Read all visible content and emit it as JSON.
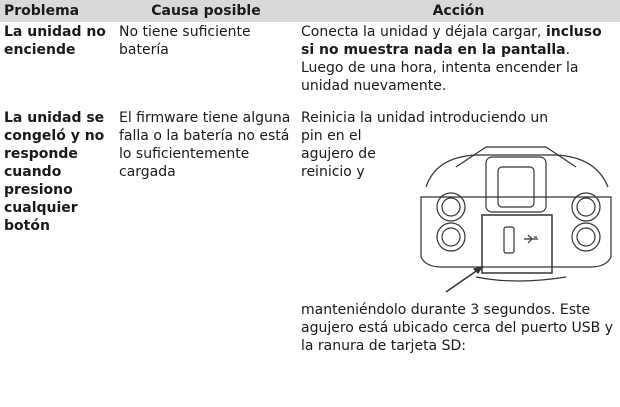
{
  "table": {
    "header": [
      "Problema",
      "Causa posible",
      "Acción"
    ],
    "rows": [
      {
        "problem": "La unidad no enciende",
        "cause": "No tiene suficiente batería",
        "action": [
          {
            "text": "Conecta la unidad y déjala cargar, ",
            "bold": false
          },
          {
            "text": "incluso si no muestra nada en la pantalla",
            "bold": true
          },
          {
            "text": ". Luego de una hora, intenta encender la unidad nuevamente.",
            "bold": false
          }
        ]
      },
      {
        "problem": "La unidad se congeló y no responde cuando presiono cualquier botón",
        "cause": "El firmware tiene alguna falla o la batería no está lo suficientemente cargada",
        "action_intro": "Reinicia la unidad introduciendo un",
        "action_beside_image": "pin en el agujero de reinicio y",
        "action_after_image": "manteniéndolo durante 3 segundos. Este agujero está ubicado cerca del puerto USB y la ranura de tarjeta SD:"
      }
    ]
  }
}
